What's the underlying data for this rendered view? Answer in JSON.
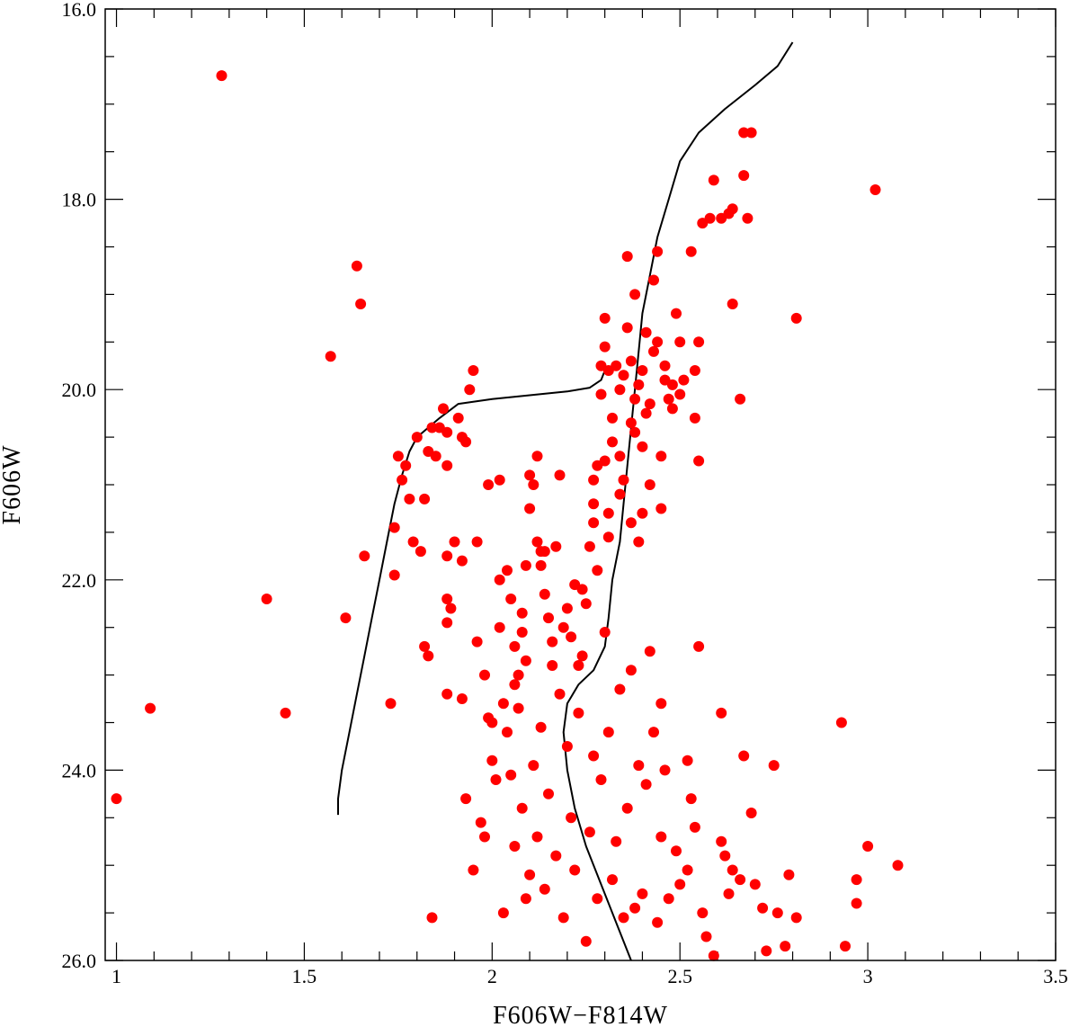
{
  "chart_data": {
    "type": "scatter",
    "title": "",
    "xlabel": "F606W−F814W",
    "ylabel": "F606W",
    "xlim": [
      0.97,
      3.5
    ],
    "ylim": [
      26.0,
      16.0
    ],
    "y_inverted": true,
    "x_ticks": [
      {
        "value": 1.0,
        "label": "1"
      },
      {
        "value": 1.5,
        "label": "1.5"
      },
      {
        "value": 2.0,
        "label": "2"
      },
      {
        "value": 2.5,
        "label": "2.5"
      },
      {
        "value": 3.0,
        "label": "3"
      },
      {
        "value": 3.5,
        "label": "3.5"
      }
    ],
    "y_ticks": [
      {
        "value": 16.0,
        "label": "16.0"
      },
      {
        "value": 18.0,
        "label": "18.0"
      },
      {
        "value": 20.0,
        "label": "20.0"
      },
      {
        "value": 22.0,
        "label": "22.0"
      },
      {
        "value": 24.0,
        "label": "24.0"
      },
      {
        "value": 26.0,
        "label": "26.0"
      }
    ],
    "x_minor_step": 0.1,
    "y_minor_step": 0.5,
    "grid": false,
    "series": [
      {
        "kind": "points",
        "color": "#ff0000",
        "points": [
          [
            1.28,
            16.7
          ],
          [
            1.0,
            24.3
          ],
          [
            1.09,
            23.35
          ],
          [
            1.4,
            22.2
          ],
          [
            1.45,
            23.4
          ],
          [
            1.57,
            19.65
          ],
          [
            1.61,
            22.4
          ],
          [
            1.64,
            18.7
          ],
          [
            1.65,
            19.1
          ],
          [
            1.66,
            21.75
          ],
          [
            1.73,
            23.3
          ],
          [
            1.74,
            21.45
          ],
          [
            1.74,
            21.95
          ],
          [
            1.75,
            20.7
          ],
          [
            1.76,
            20.95
          ],
          [
            1.77,
            20.8
          ],
          [
            1.78,
            21.15
          ],
          [
            1.79,
            21.6
          ],
          [
            1.8,
            20.5
          ],
          [
            1.81,
            21.7
          ],
          [
            1.82,
            21.15
          ],
          [
            1.82,
            22.7
          ],
          [
            1.83,
            22.8
          ],
          [
            1.83,
            20.65
          ],
          [
            1.84,
            20.4
          ],
          [
            1.85,
            20.7
          ],
          [
            1.86,
            20.4
          ],
          [
            1.87,
            20.2
          ],
          [
            1.88,
            20.45
          ],
          [
            1.88,
            20.8
          ],
          [
            1.88,
            21.75
          ],
          [
            1.88,
            22.2
          ],
          [
            1.88,
            22.45
          ],
          [
            1.88,
            23.2
          ],
          [
            1.89,
            22.3
          ],
          [
            1.9,
            21.6
          ],
          [
            1.91,
            20.3
          ],
          [
            1.92,
            20.5
          ],
          [
            1.92,
            21.8
          ],
          [
            1.92,
            23.25
          ],
          [
            1.93,
            24.3
          ],
          [
            1.93,
            20.55
          ],
          [
            1.94,
            20.0
          ],
          [
            1.95,
            19.8
          ],
          [
            1.96,
            21.6
          ],
          [
            1.96,
            22.65
          ],
          [
            1.97,
            24.55
          ],
          [
            1.98,
            24.7
          ],
          [
            1.98,
            23.0
          ],
          [
            1.99,
            21.0
          ],
          [
            2.0,
            23.5
          ],
          [
            2.0,
            23.9
          ],
          [
            2.01,
            24.1
          ],
          [
            2.02,
            22.0
          ],
          [
            2.02,
            22.5
          ],
          [
            2.02,
            20.95
          ],
          [
            2.03,
            23.3
          ],
          [
            2.04,
            21.9
          ],
          [
            2.05,
            22.2
          ],
          [
            2.06,
            22.7
          ],
          [
            2.07,
            23.0
          ],
          [
            2.08,
            22.35
          ],
          [
            2.08,
            22.55
          ],
          [
            2.09,
            21.85
          ],
          [
            2.1,
            21.25
          ],
          [
            2.1,
            20.9
          ],
          [
            2.11,
            21.0
          ],
          [
            2.12,
            21.6
          ],
          [
            2.12,
            20.7
          ],
          [
            2.13,
            21.7
          ],
          [
            2.13,
            21.85
          ],
          [
            2.14,
            22.15
          ],
          [
            2.14,
            21.7
          ],
          [
            2.15,
            22.4
          ],
          [
            2.16,
            22.65
          ],
          [
            2.17,
            21.65
          ],
          [
            2.18,
            20.9
          ],
          [
            2.19,
            22.5
          ],
          [
            2.2,
            22.3
          ],
          [
            2.21,
            22.6
          ],
          [
            2.22,
            22.05
          ],
          [
            2.23,
            22.9
          ],
          [
            2.24,
            22.1
          ],
          [
            2.25,
            22.25
          ],
          [
            2.26,
            21.65
          ],
          [
            2.27,
            21.2
          ],
          [
            2.27,
            21.4
          ],
          [
            2.27,
            20.95
          ],
          [
            2.28,
            20.8
          ],
          [
            2.28,
            21.9
          ],
          [
            2.29,
            20.05
          ],
          [
            2.29,
            19.75
          ],
          [
            2.3,
            19.25
          ],
          [
            2.3,
            19.55
          ],
          [
            2.3,
            20.75
          ],
          [
            2.31,
            19.8
          ],
          [
            2.31,
            21.3
          ],
          [
            2.31,
            21.55
          ],
          [
            2.32,
            20.3
          ],
          [
            2.32,
            20.55
          ],
          [
            2.33,
            19.75
          ],
          [
            2.34,
            20.0
          ],
          [
            2.34,
            20.7
          ],
          [
            2.34,
            21.1
          ],
          [
            2.35,
            19.85
          ],
          [
            2.35,
            20.95
          ],
          [
            2.36,
            18.6
          ],
          [
            2.36,
            19.35
          ],
          [
            2.37,
            19.7
          ],
          [
            2.37,
            20.35
          ],
          [
            2.37,
            21.4
          ],
          [
            2.38,
            19.0
          ],
          [
            2.38,
            20.1
          ],
          [
            2.38,
            20.45
          ],
          [
            2.39,
            19.95
          ],
          [
            2.39,
            21.6
          ],
          [
            2.4,
            19.8
          ],
          [
            2.4,
            20.6
          ],
          [
            2.4,
            21.3
          ],
          [
            2.41,
            20.25
          ],
          [
            2.41,
            19.4
          ],
          [
            2.42,
            20.15
          ],
          [
            2.42,
            21.0
          ],
          [
            2.43,
            19.6
          ],
          [
            2.43,
            18.85
          ],
          [
            2.44,
            19.5
          ],
          [
            2.44,
            18.55
          ],
          [
            2.45,
            20.7
          ],
          [
            2.45,
            21.25
          ],
          [
            2.46,
            19.9
          ],
          [
            2.46,
            19.75
          ],
          [
            2.47,
            20.1
          ],
          [
            2.48,
            20.2
          ],
          [
            2.48,
            19.95
          ],
          [
            2.49,
            19.2
          ],
          [
            2.5,
            19.5
          ],
          [
            2.5,
            20.05
          ],
          [
            2.51,
            19.9
          ],
          [
            2.53,
            18.55
          ],
          [
            2.54,
            19.8
          ],
          [
            2.54,
            20.3
          ],
          [
            2.55,
            20.75
          ],
          [
            2.55,
            19.5
          ],
          [
            2.56,
            18.25
          ],
          [
            2.58,
            18.2
          ],
          [
            2.59,
            17.8
          ],
          [
            2.61,
            18.2
          ],
          [
            2.63,
            18.15
          ],
          [
            2.64,
            18.1
          ],
          [
            2.64,
            19.1
          ],
          [
            2.66,
            20.1
          ],
          [
            2.67,
            17.3
          ],
          [
            2.67,
            17.75
          ],
          [
            2.68,
            18.2
          ],
          [
            2.69,
            17.3
          ],
          [
            2.81,
            19.25
          ],
          [
            3.02,
            17.9
          ],
          [
            2.55,
            22.7
          ],
          [
            2.61,
            23.4
          ],
          [
            2.67,
            23.85
          ],
          [
            2.69,
            24.45
          ],
          [
            2.75,
            23.95
          ],
          [
            2.79,
            25.1
          ],
          [
            2.81,
            25.55
          ],
          [
            2.93,
            23.5
          ],
          [
            2.94,
            25.85
          ],
          [
            2.97,
            25.15
          ],
          [
            2.97,
            25.4
          ],
          [
            3.0,
            24.8
          ],
          [
            3.08,
            25.0
          ],
          [
            2.73,
            25.9
          ],
          [
            2.78,
            25.85
          ],
          [
            2.76,
            25.5
          ],
          [
            2.72,
            25.45
          ],
          [
            2.7,
            25.2
          ],
          [
            2.66,
            25.15
          ],
          [
            2.64,
            25.05
          ],
          [
            2.62,
            24.9
          ],
          [
            2.61,
            24.75
          ],
          [
            2.63,
            25.3
          ],
          [
            2.59,
            25.95
          ],
          [
            2.57,
            25.75
          ],
          [
            2.56,
            25.5
          ],
          [
            2.54,
            24.6
          ],
          [
            2.53,
            24.3
          ],
          [
            2.52,
            23.9
          ],
          [
            2.52,
            25.05
          ],
          [
            2.5,
            25.2
          ],
          [
            2.49,
            24.85
          ],
          [
            2.47,
            25.35
          ],
          [
            2.46,
            24.0
          ],
          [
            2.45,
            23.3
          ],
          [
            2.45,
            24.7
          ],
          [
            2.44,
            25.6
          ],
          [
            2.43,
            23.6
          ],
          [
            2.42,
            22.75
          ],
          [
            2.41,
            24.15
          ],
          [
            2.4,
            25.3
          ],
          [
            2.39,
            23.95
          ],
          [
            2.38,
            25.45
          ],
          [
            2.37,
            22.95
          ],
          [
            2.36,
            24.4
          ],
          [
            2.35,
            25.55
          ],
          [
            2.34,
            23.15
          ],
          [
            2.33,
            24.75
          ],
          [
            2.32,
            25.15
          ],
          [
            2.31,
            23.6
          ],
          [
            2.3,
            22.55
          ],
          [
            2.29,
            24.1
          ],
          [
            2.28,
            25.35
          ],
          [
            2.27,
            23.85
          ],
          [
            2.26,
            24.65
          ],
          [
            2.25,
            25.8
          ],
          [
            2.24,
            22.8
          ],
          [
            2.23,
            23.4
          ],
          [
            2.22,
            25.05
          ],
          [
            2.21,
            24.5
          ],
          [
            2.2,
            23.75
          ],
          [
            2.19,
            25.55
          ],
          [
            2.18,
            23.2
          ],
          [
            2.17,
            24.9
          ],
          [
            2.16,
            22.9
          ],
          [
            2.15,
            24.25
          ],
          [
            2.14,
            25.25
          ],
          [
            2.13,
            23.55
          ],
          [
            2.12,
            24.7
          ],
          [
            2.11,
            23.95
          ],
          [
            2.1,
            25.1
          ],
          [
            2.09,
            22.85
          ],
          [
            2.08,
            24.4
          ],
          [
            2.07,
            23.35
          ],
          [
            2.06,
            24.8
          ],
          [
            2.05,
            24.05
          ],
          [
            2.04,
            23.6
          ],
          [
            2.03,
            25.5
          ],
          [
            1.95,
            25.05
          ],
          [
            1.84,
            25.55
          ],
          [
            1.99,
            23.45
          ],
          [
            2.06,
            23.1
          ],
          [
            2.09,
            25.35
          ]
        ]
      },
      {
        "kind": "curve",
        "color": "#000000",
        "points": [
          [
            1.59,
            24.47
          ],
          [
            1.59,
            24.3
          ],
          [
            1.6,
            24.0
          ],
          [
            1.62,
            23.6
          ],
          [
            1.64,
            23.2
          ],
          [
            1.66,
            22.8
          ],
          [
            1.68,
            22.4
          ],
          [
            1.7,
            22.0
          ],
          [
            1.72,
            21.6
          ],
          [
            1.74,
            21.2
          ],
          [
            1.76,
            20.9
          ],
          [
            1.78,
            20.65
          ],
          [
            1.8,
            20.5
          ],
          [
            1.83,
            20.4
          ],
          [
            1.86,
            20.3
          ],
          [
            1.91,
            20.15
          ],
          [
            2.0,
            20.1
          ],
          [
            2.1,
            20.06
          ],
          [
            2.2,
            20.02
          ],
          [
            2.26,
            19.98
          ],
          [
            2.29,
            19.9
          ],
          [
            2.3,
            19.8
          ]
        ]
      },
      {
        "kind": "curve",
        "color": "#000000",
        "points": [
          [
            2.37,
            26.0
          ],
          [
            2.33,
            25.6
          ],
          [
            2.29,
            25.2
          ],
          [
            2.25,
            24.8
          ],
          [
            2.22,
            24.4
          ],
          [
            2.2,
            24.0
          ],
          [
            2.19,
            23.6
          ],
          [
            2.2,
            23.3
          ],
          [
            2.23,
            23.1
          ],
          [
            2.27,
            22.95
          ],
          [
            2.3,
            22.7
          ],
          [
            2.31,
            22.4
          ],
          [
            2.32,
            22.0
          ],
          [
            2.34,
            21.6
          ],
          [
            2.35,
            21.2
          ],
          [
            2.36,
            20.8
          ],
          [
            2.37,
            20.4
          ],
          [
            2.38,
            20.0
          ],
          [
            2.39,
            19.6
          ],
          [
            2.4,
            19.2
          ],
          [
            2.42,
            18.8
          ],
          [
            2.44,
            18.4
          ],
          [
            2.47,
            18.0
          ],
          [
            2.5,
            17.6
          ],
          [
            2.55,
            17.3
          ],
          [
            2.62,
            17.05
          ],
          [
            2.7,
            16.8
          ],
          [
            2.76,
            16.6
          ],
          [
            2.8,
            16.35
          ]
        ]
      }
    ]
  }
}
